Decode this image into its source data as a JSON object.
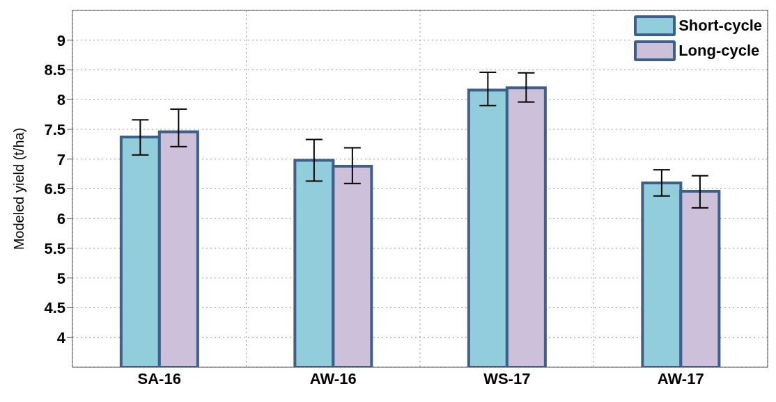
{
  "chart_data": {
    "type": "bar",
    "ylabel": "Modeled yield (t/ha)",
    "categories": [
      "SA-16",
      "AW-16",
      "WS-17",
      "AW-17"
    ],
    "series": [
      {
        "name": "Short-cycle",
        "color": "#92cddc",
        "values": [
          7.37,
          6.98,
          8.16,
          6.6
        ],
        "errors": [
          [
            7.07,
            7.66
          ],
          [
            6.63,
            7.33
          ],
          [
            7.9,
            8.46
          ],
          [
            6.38,
            6.82
          ]
        ]
      },
      {
        "name": "Long-cycle",
        "color": "#ccc0da",
        "values": [
          7.46,
          6.88,
          8.2,
          6.46
        ],
        "errors": [
          [
            7.21,
            7.84
          ],
          [
            6.59,
            7.19
          ],
          [
            7.96,
            8.45
          ],
          [
            6.18,
            6.72
          ]
        ]
      }
    ],
    "ylim": [
      3.5,
      9.5
    ],
    "yticks": [
      4,
      4.5,
      5,
      5.5,
      6,
      6.5,
      7,
      7.5,
      8,
      8.5,
      9
    ],
    "grid": true,
    "legend": "top right"
  }
}
